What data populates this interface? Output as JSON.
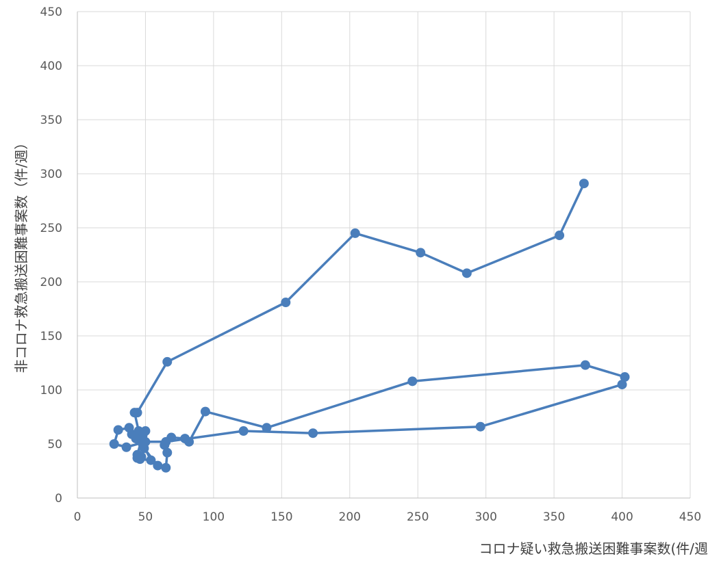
{
  "chart_data": {
    "type": "scatter",
    "title": "",
    "xlabel": "コロナ疑い救急搬送困難事案数(件/週",
    "ylabel": "非コロナ救急搬送困難事案数（件/週）",
    "xlim": [
      0,
      450
    ],
    "ylim": [
      0,
      450
    ],
    "x_ticks": [
      "0",
      "50",
      "100",
      "150",
      "200",
      "250",
      "300",
      "350",
      "400",
      "450"
    ],
    "y_ticks": [
      "0",
      "50",
      "100",
      "150",
      "200",
      "250",
      "300",
      "350",
      "400",
      "450"
    ],
    "grid": true,
    "connected": true,
    "color": "#4a7ebb",
    "series": [
      {
        "name": "",
        "points": [
          [
            372,
            291
          ],
          [
            354,
            243
          ],
          [
            286,
            208
          ],
          [
            252,
            227
          ],
          [
            204,
            245
          ],
          [
            153,
            181
          ],
          [
            66,
            126
          ],
          [
            44,
            79
          ],
          [
            42,
            79
          ],
          [
            45,
            62
          ],
          [
            50,
            62
          ],
          [
            48,
            58
          ],
          [
            44,
            40
          ],
          [
            47,
            38
          ],
          [
            49,
            46
          ],
          [
            59,
            30
          ],
          [
            65,
            28
          ],
          [
            66,
            42
          ],
          [
            64,
            49
          ],
          [
            69,
            56
          ],
          [
            79,
            55
          ],
          [
            82,
            52
          ],
          [
            94,
            80
          ],
          [
            139,
            65
          ],
          [
            246,
            108
          ],
          [
            373,
            123
          ],
          [
            402,
            112
          ],
          [
            400,
            105
          ],
          [
            296,
            66
          ],
          [
            173,
            60
          ],
          [
            122,
            62
          ],
          [
            65,
            52
          ],
          [
            50,
            52
          ],
          [
            36,
            47
          ],
          [
            27,
            50
          ],
          [
            30,
            63
          ],
          [
            38,
            65
          ],
          [
            40,
            59
          ],
          [
            43,
            55
          ],
          [
            48,
            50
          ],
          [
            54,
            35
          ],
          [
            46,
            36
          ],
          [
            44,
            37
          ]
        ]
      }
    ]
  }
}
